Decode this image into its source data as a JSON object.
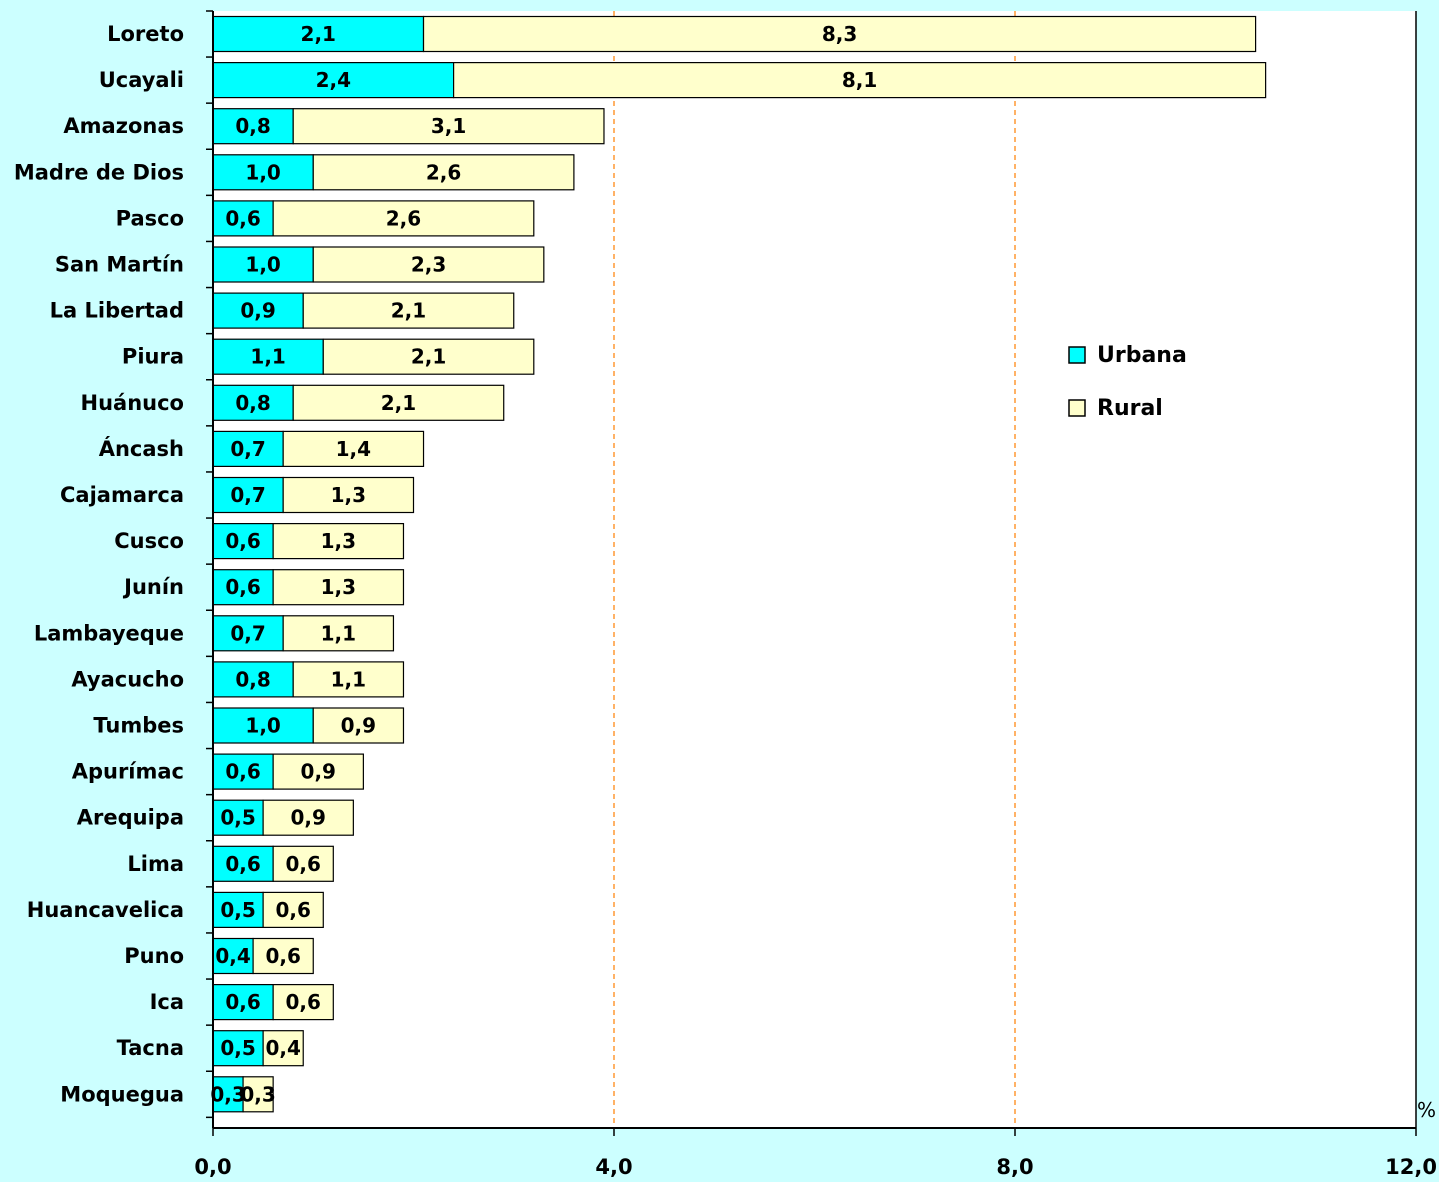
{
  "chart_data": {
    "type": "bar",
    "orientation": "horizontal",
    "stacked": true,
    "categories": [
      "Loreto",
      "Ucayali",
      "Amazonas",
      "Madre de Dios",
      "Pasco",
      "San Martín",
      "La Libertad",
      "Piura",
      "Huánuco",
      "Áncash",
      "Cajamarca",
      "Cusco",
      "Junín",
      "Lambayeque",
      "Ayacucho",
      "Tumbes",
      "Apurímac",
      "Arequipa",
      "Lima",
      "Huancavelica",
      "Puno",
      "Ica",
      "Tacna",
      "Moquegua"
    ],
    "series": [
      {
        "name": "Urbana",
        "color": "#00ffff",
        "values": [
          2.1,
          2.4,
          0.8,
          1.0,
          0.6,
          1.0,
          0.9,
          1.1,
          0.8,
          0.7,
          0.7,
          0.6,
          0.6,
          0.7,
          0.8,
          1.0,
          0.6,
          0.5,
          0.6,
          0.5,
          0.4,
          0.6,
          0.5,
          0.3
        ],
        "labels": [
          "2,1",
          "2,4",
          "0,8",
          "1,0",
          "0,6",
          "1,0",
          "0,9",
          "1,1",
          "0,8",
          "0,7",
          "0,7",
          "0,6",
          "0,6",
          "0,7",
          "0,8",
          "1,0",
          "0,6",
          "0,5",
          "0,6",
          "0,5",
          "0,4",
          "0,6",
          "0,5",
          "0,3"
        ]
      },
      {
        "name": "Rural",
        "color": "#ffffcc",
        "values": [
          8.3,
          8.1,
          3.1,
          2.6,
          2.6,
          2.3,
          2.1,
          2.1,
          2.1,
          1.4,
          1.3,
          1.3,
          1.3,
          1.1,
          1.1,
          0.9,
          0.9,
          0.9,
          0.6,
          0.6,
          0.6,
          0.6,
          0.4,
          0.3
        ],
        "labels": [
          "8,3",
          "8,1",
          "3,1",
          "2,6",
          "2,6",
          "2,3",
          "2,1",
          "2,1",
          "2,1",
          "1,4",
          "1,3",
          "1,3",
          "1,3",
          "1,1",
          "1,1",
          "0,9",
          "0,9",
          "0,9",
          "0,6",
          "0,6",
          "0,6",
          "0,6",
          "0,4",
          "0,3"
        ]
      }
    ],
    "xlim": [
      0,
      12
    ],
    "x_ticks": [
      0,
      4,
      8,
      12
    ],
    "x_tick_labels": [
      "0,0",
      "4,0",
      "8,0",
      "12,0"
    ],
    "x_unit": "%",
    "grid": "vertical dashed",
    "grid_color": "#ff9933",
    "legend_position": "right"
  }
}
